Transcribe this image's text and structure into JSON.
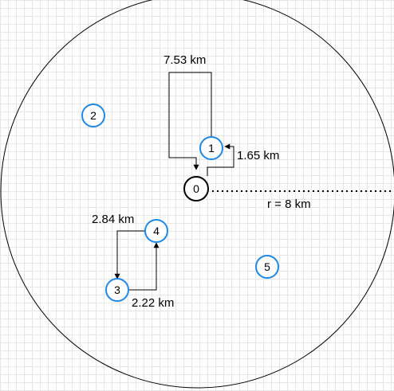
{
  "colors": {
    "grid": "#e6e6e6",
    "boundary": "#000000",
    "depot_stroke": "#000000",
    "node_stroke": "#1e88e5",
    "arrow": "#000000"
  },
  "boundary": {
    "radius_label": "r = 8 km"
  },
  "nodes": [
    {
      "id": "0",
      "label": "0",
      "kind": "depot"
    },
    {
      "id": "1",
      "label": "1",
      "kind": "customer"
    },
    {
      "id": "2",
      "label": "2",
      "kind": "customer"
    },
    {
      "id": "3",
      "label": "3",
      "kind": "customer"
    },
    {
      "id": "4",
      "label": "4",
      "kind": "customer"
    },
    {
      "id": "5",
      "label": "5",
      "kind": "customer"
    }
  ],
  "edges": [
    {
      "from": "0",
      "to": "1",
      "label": "1.65 km"
    },
    {
      "from": "1",
      "to": "0",
      "label": "7.53 km"
    },
    {
      "from": "4",
      "to": "3",
      "label": "2.84 km"
    },
    {
      "from": "3",
      "to": "4",
      "label": "2.22 km"
    }
  ]
}
